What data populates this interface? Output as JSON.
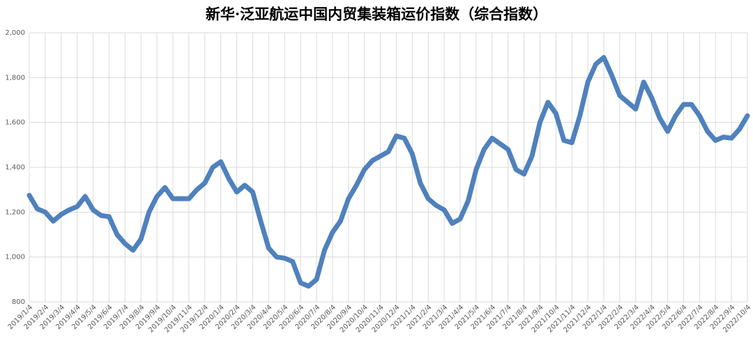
{
  "chart_data": {
    "type": "line",
    "title": "新华·泛亚航运中国内贸集装箱运价指数（综合指数）",
    "categories": [
      "2019/1/4",
      null,
      "2019/2/4",
      null,
      "2019/3/4",
      null,
      "2019/4/4",
      null,
      "2019/5/4",
      null,
      "2019/6/4",
      null,
      "2019/7/4",
      null,
      "2019/8/4",
      null,
      "2019/9/4",
      null,
      "2019/10/4",
      null,
      "2019/11/4",
      null,
      "2019/12/4",
      null,
      "2020/1/4",
      null,
      "2020/2/4",
      null,
      "2020/3/4",
      null,
      "2020/4/4",
      null,
      "2020/5/4",
      null,
      "2020/6/4",
      null,
      "2020/7/4",
      null,
      "2020/8/4",
      null,
      "2020/9/4",
      null,
      "2020/10/4",
      null,
      "2020/11/4",
      null,
      "2020/12/4",
      null,
      "2021/1/4",
      null,
      "2021/2/4",
      null,
      "2021/3/4",
      null,
      "2021/4/4",
      null,
      "2021/5/4",
      null,
      "2021/6/4",
      null,
      "2021/7/4",
      null,
      "2021/8/4",
      null,
      "2021/9/4",
      null,
      "2021/10/4",
      null,
      "2021/11/4",
      null,
      "2021/12/4",
      null,
      "2022/1/4",
      null,
      "2022/2/4",
      null,
      "2022/3/4",
      null,
      "2022/4/4",
      null,
      "2022/5/4",
      null,
      "2022/6/4",
      null,
      "2022/7/4",
      null,
      "2022/8/4",
      null,
      "2022/9/4",
      null,
      "2022/10/4"
    ],
    "series": [
      {
        "name": "综合指数",
        "color": "#4f81bd",
        "values": [
          1275,
          1215,
          1200,
          1160,
          1190,
          1210,
          1225,
          1270,
          1210,
          1185,
          1180,
          1100,
          1060,
          1030,
          1080,
          1200,
          1270,
          1310,
          1260,
          1260,
          1260,
          1300,
          1330,
          1400,
          1425,
          1350,
          1290,
          1320,
          1290,
          1160,
          1040,
          1000,
          995,
          980,
          885,
          870,
          900,
          1030,
          1110,
          1160,
          1260,
          1320,
          1390,
          1430,
          1450,
          1470,
          1540,
          1530,
          1460,
          1330,
          1260,
          1230,
          1210,
          1150,
          1170,
          1250,
          1390,
          1480,
          1530,
          1505,
          1480,
          1390,
          1370,
          1450,
          1600,
          1690,
          1640,
          1520,
          1510,
          1630,
          1780,
          1860,
          1890,
          1810,
          1720,
          1690,
          1660,
          1780,
          1710,
          1620,
          1560,
          1630,
          1680,
          1680,
          1630,
          1560,
          1520,
          1535,
          1530,
          1570,
          1630
        ]
      }
    ],
    "ylim": [
      800,
      2000
    ],
    "yticks": [
      800,
      {
        "value": 1000,
        "label": "1,000"
      },
      {
        "value": 1200,
        "label": "1,200"
      },
      {
        "value": 1400,
        "label": "1,400"
      },
      {
        "value": 1600,
        "label": "1,600"
      },
      {
        "value": 1800,
        "label": "1,800"
      },
      {
        "value": 2000,
        "label": "2,000"
      }
    ],
    "grid": true
  }
}
